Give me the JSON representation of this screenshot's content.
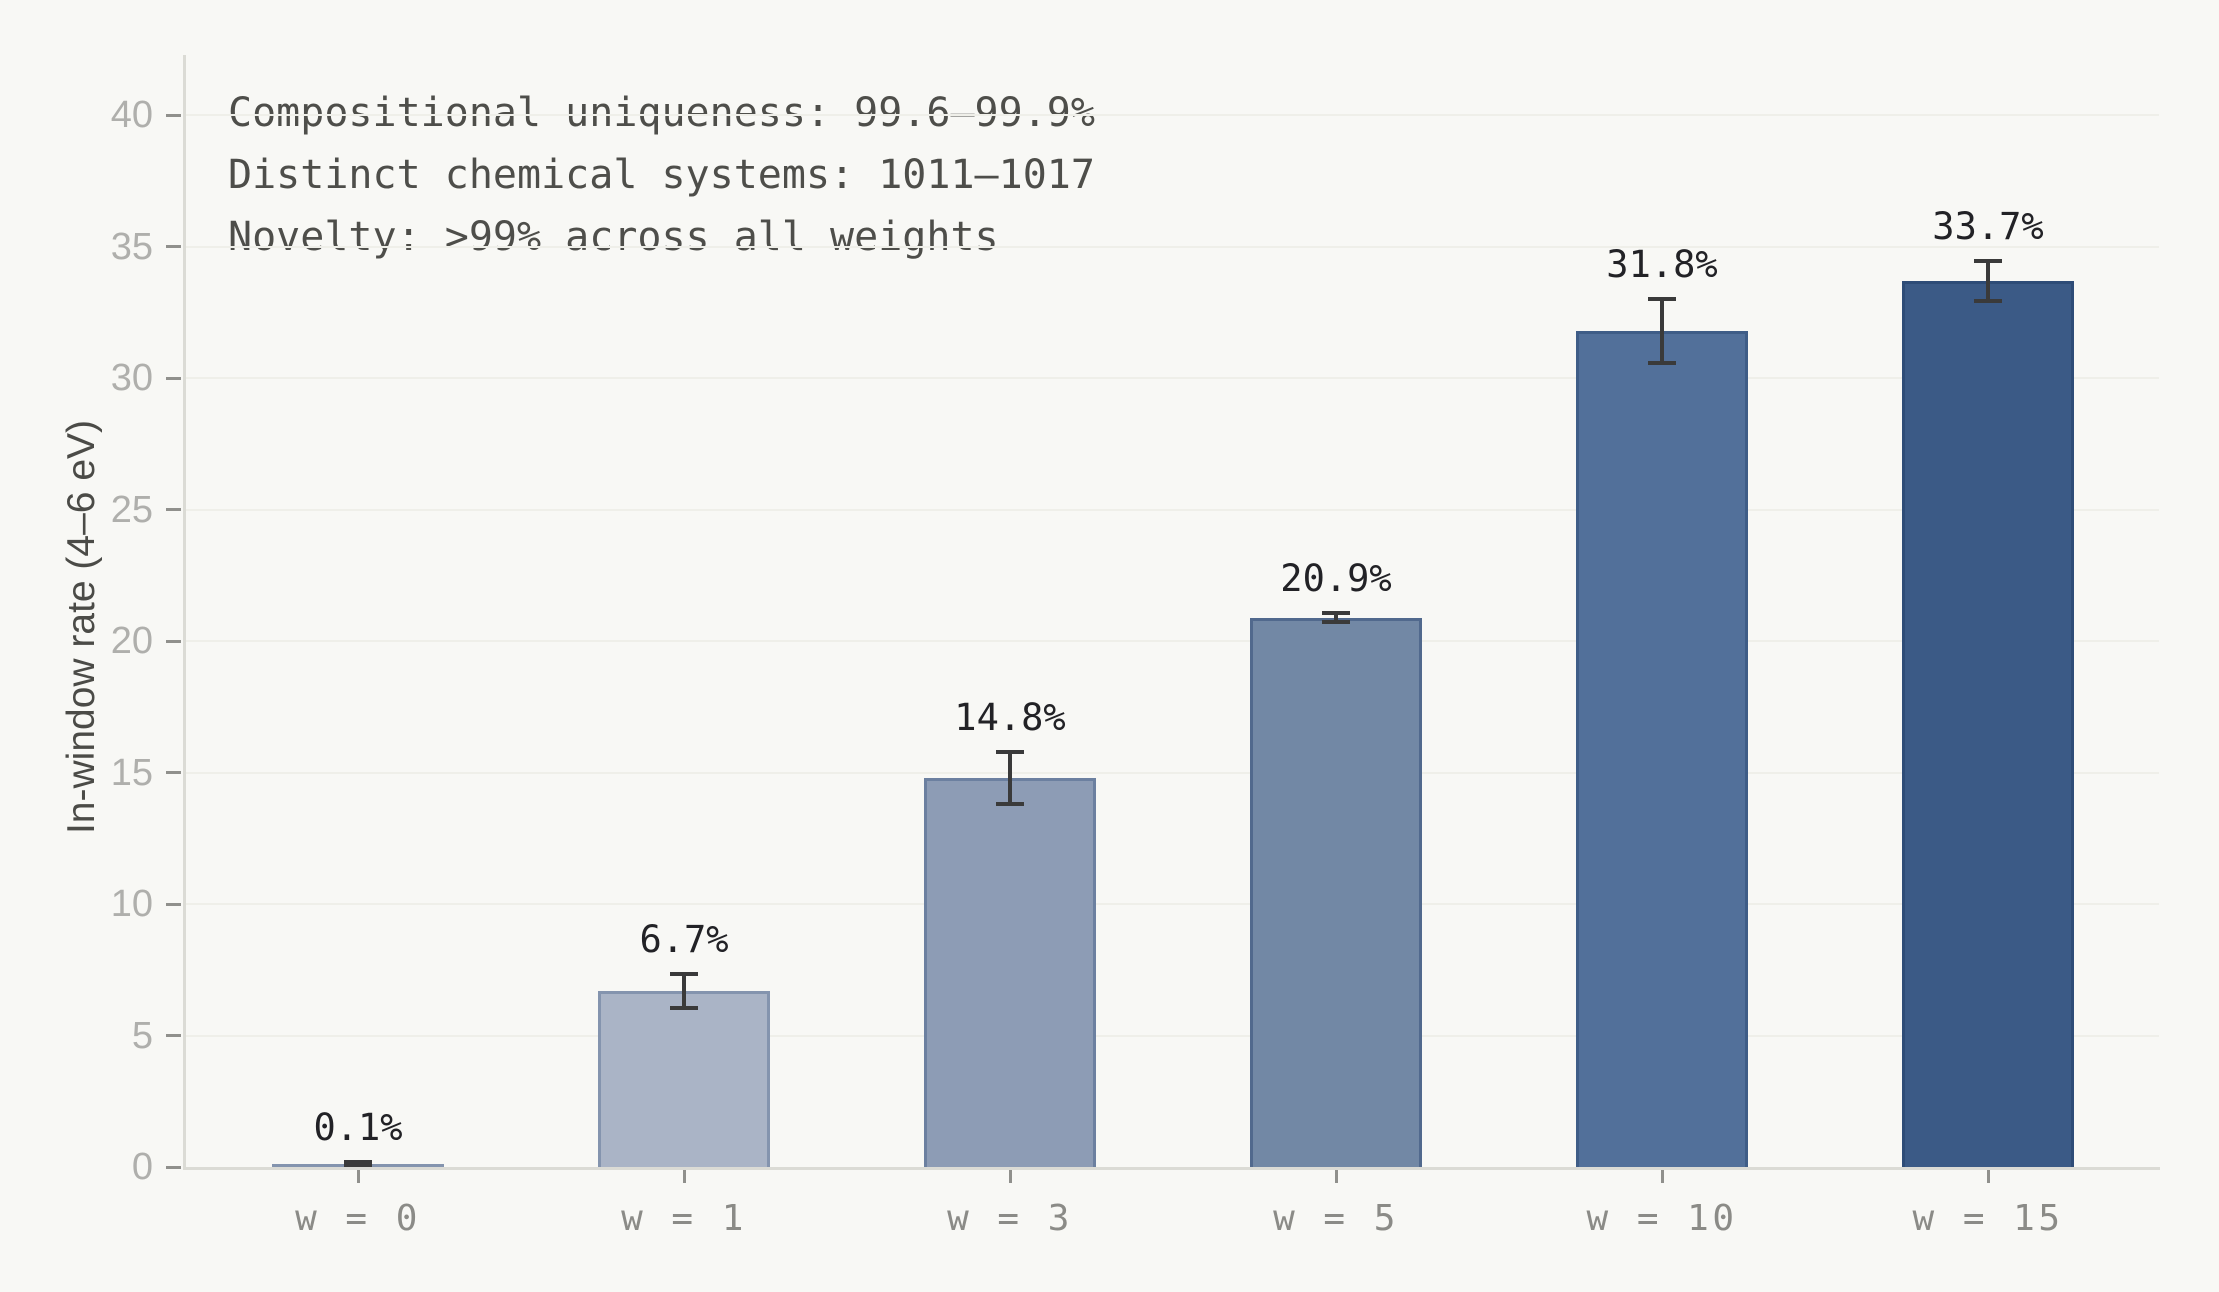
{
  "chart_data": {
    "type": "bar",
    "categories": [
      "w = 0",
      "w = 1",
      "w = 3",
      "w = 5",
      "w = 10",
      "w = 15"
    ],
    "values": [
      0.1,
      6.7,
      14.8,
      20.9,
      31.8,
      33.7
    ],
    "value_labels": [
      "0.1%",
      "6.7%",
      "14.8%",
      "20.9%",
      "31.8%",
      "33.7%"
    ],
    "errors": [
      0.08,
      0.65,
      1.0,
      0.18,
      1.2,
      0.75
    ],
    "bar_fill_colors": [
      "#aab4c6",
      "#aab4c6",
      "#8d9cb5",
      "#7288a5",
      "#52709a",
      "#3b5a86"
    ],
    "bar_border_colors": [
      "#8494ae",
      "#8494ae",
      "#6c80a0",
      "#51698d",
      "#3f5d87",
      "#2e4c77"
    ],
    "error_color": "#3a3a3a",
    "title": "",
    "xlabel": "",
    "ylabel": "In-window rate (4–6 eV)",
    "yticks": [
      0,
      5,
      10,
      15,
      20,
      25,
      30,
      35,
      40
    ],
    "ylim": [
      0,
      42.3
    ],
    "grid": "horizontal",
    "legend": "none",
    "background_color": "#f8f8f5",
    "annotations": [
      "Compositional uniqueness: 99.6–99.9%",
      "Distinct chemical systems: 1011–1017",
      "Novelty: >99% across all weights"
    ]
  }
}
